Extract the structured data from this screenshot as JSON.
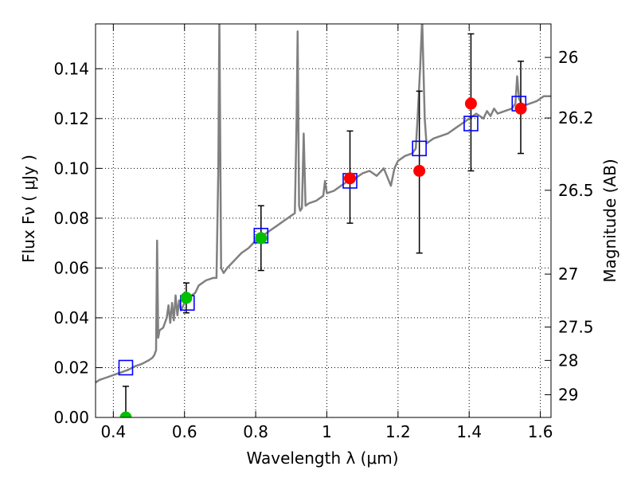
{
  "chart_data": {
    "type": "scatter",
    "xlabel": "Wavelength  λ (μm)",
    "ylabel": "Flux  Fν  ( μJy )",
    "ylabel_right": "Magnitude (AB)",
    "xlim": [
      0.35,
      1.63
    ],
    "ylim": [
      0.0,
      0.158
    ],
    "grid": true,
    "x_ticks": [
      {
        "value": 0.4,
        "label": "0.4"
      },
      {
        "value": 0.6,
        "label": "0.6"
      },
      {
        "value": 0.8,
        "label": "0.8"
      },
      {
        "value": 1.0,
        "label": "1"
      },
      {
        "value": 1.2,
        "label": "1.2"
      },
      {
        "value": 1.4,
        "label": "1.4"
      },
      {
        "value": 1.6,
        "label": "1.6"
      }
    ],
    "y_ticks": [
      {
        "value": 0.0,
        "label": "0.00"
      },
      {
        "value": 0.02,
        "label": "0.02"
      },
      {
        "value": 0.04,
        "label": "0.04"
      },
      {
        "value": 0.06,
        "label": "0.06"
      },
      {
        "value": 0.08,
        "label": "0.08"
      },
      {
        "value": 0.1,
        "label": "0.10"
      },
      {
        "value": 0.12,
        "label": "0.12"
      },
      {
        "value": 0.14,
        "label": "0.14"
      }
    ],
    "right_ticks": [
      {
        "value": 26,
        "label": "26"
      },
      {
        "value": 26.2,
        "label": "26.2"
      },
      {
        "value": 26.5,
        "label": "26.5"
      },
      {
        "value": 27,
        "label": "27"
      },
      {
        "value": 27.5,
        "label": "27.5"
      },
      {
        "value": 28,
        "label": "28"
      },
      {
        "value": 29,
        "label": "29"
      }
    ],
    "series": [
      {
        "kind": "line",
        "color": "#808080",
        "points": [
          [
            0.35,
            0.014
          ],
          [
            0.36,
            0.015
          ],
          [
            0.38,
            0.016
          ],
          [
            0.4,
            0.017
          ],
          [
            0.42,
            0.018
          ],
          [
            0.44,
            0.019
          ],
          [
            0.46,
            0.0205
          ],
          [
            0.48,
            0.0215
          ],
          [
            0.5,
            0.023
          ],
          [
            0.51,
            0.024
          ],
          [
            0.515,
            0.025
          ],
          [
            0.52,
            0.027
          ],
          [
            0.523,
            0.071
          ],
          [
            0.526,
            0.032
          ],
          [
            0.53,
            0.035
          ],
          [
            0.54,
            0.036
          ],
          [
            0.55,
            0.04
          ],
          [
            0.555,
            0.045
          ],
          [
            0.56,
            0.038
          ],
          [
            0.565,
            0.046
          ],
          [
            0.57,
            0.039
          ],
          [
            0.575,
            0.049
          ],
          [
            0.58,
            0.041
          ],
          [
            0.585,
            0.047
          ],
          [
            0.59,
            0.043
          ],
          [
            0.6,
            0.046
          ],
          [
            0.61,
            0.047
          ],
          [
            0.62,
            0.049
          ],
          [
            0.63,
            0.05
          ],
          [
            0.64,
            0.053
          ],
          [
            0.65,
            0.054
          ],
          [
            0.66,
            0.055
          ],
          [
            0.68,
            0.056
          ],
          [
            0.69,
            0.056
          ],
          [
            0.695,
            0.1
          ],
          [
            0.698,
            0.16
          ],
          [
            0.703,
            0.06
          ],
          [
            0.71,
            0.058
          ],
          [
            0.72,
            0.06
          ],
          [
            0.74,
            0.063
          ],
          [
            0.76,
            0.066
          ],
          [
            0.78,
            0.068
          ],
          [
            0.8,
            0.071
          ],
          [
            0.82,
            0.073
          ],
          [
            0.84,
            0.075
          ],
          [
            0.86,
            0.077
          ],
          [
            0.88,
            0.079
          ],
          [
            0.9,
            0.081
          ],
          [
            0.91,
            0.082
          ],
          [
            0.915,
            0.12
          ],
          [
            0.918,
            0.155
          ],
          [
            0.922,
            0.085
          ],
          [
            0.925,
            0.083
          ],
          [
            0.93,
            0.084
          ],
          [
            0.935,
            0.114
          ],
          [
            0.94,
            0.085
          ],
          [
            0.95,
            0.086
          ],
          [
            0.97,
            0.087
          ],
          [
            0.99,
            0.089
          ],
          [
            0.995,
            0.095
          ],
          [
            1.0,
            0.09
          ],
          [
            1.02,
            0.091
          ],
          [
            1.04,
            0.093
          ],
          [
            1.06,
            0.095
          ],
          [
            1.08,
            0.096
          ],
          [
            1.1,
            0.098
          ],
          [
            1.12,
            0.099
          ],
          [
            1.14,
            0.097
          ],
          [
            1.16,
            0.1
          ],
          [
            1.18,
            0.093
          ],
          [
            1.19,
            0.1
          ],
          [
            1.2,
            0.103
          ],
          [
            1.22,
            0.105
          ],
          [
            1.24,
            0.106
          ],
          [
            1.25,
            0.108
          ],
          [
            1.255,
            0.12
          ],
          [
            1.262,
            0.14
          ],
          [
            1.268,
            0.16
          ],
          [
            1.275,
            0.12
          ],
          [
            1.28,
            0.11
          ],
          [
            1.29,
            0.111
          ],
          [
            1.3,
            0.112
          ],
          [
            1.32,
            0.113
          ],
          [
            1.34,
            0.114
          ],
          [
            1.36,
            0.116
          ],
          [
            1.38,
            0.118
          ],
          [
            1.4,
            0.12
          ],
          [
            1.42,
            0.122
          ],
          [
            1.44,
            0.12
          ],
          [
            1.45,
            0.123
          ],
          [
            1.46,
            0.121
          ],
          [
            1.47,
            0.124
          ],
          [
            1.48,
            0.122
          ],
          [
            1.5,
            0.123
          ],
          [
            1.52,
            0.124
          ],
          [
            1.53,
            0.126
          ],
          [
            1.535,
            0.137
          ],
          [
            1.54,
            0.128
          ],
          [
            1.55,
            0.125
          ],
          [
            1.57,
            0.126
          ],
          [
            1.59,
            0.127
          ],
          [
            1.61,
            0.129
          ],
          [
            1.63,
            0.129
          ]
        ]
      },
      {
        "kind": "squares",
        "color": "#0000ff",
        "points": [
          [
            0.435,
            0.02
          ],
          [
            0.608,
            0.046
          ],
          [
            0.815,
            0.073
          ],
          [
            1.065,
            0.095
          ],
          [
            1.26,
            0.108
          ],
          [
            1.405,
            0.118
          ],
          [
            1.54,
            0.126
          ]
        ]
      },
      {
        "kind": "circles",
        "color": "#00c000",
        "points": [
          [
            0.435,
            0.0
          ],
          [
            0.605,
            0.048
          ],
          [
            0.815,
            0.072
          ]
        ]
      },
      {
        "kind": "circles",
        "color": "#ff0000",
        "points": [
          [
            1.065,
            0.096
          ],
          [
            1.26,
            0.099
          ],
          [
            1.405,
            0.126
          ],
          [
            1.545,
            0.124
          ]
        ]
      },
      {
        "kind": "errorbars",
        "color": "#000000",
        "bars": [
          [
            0.435,
            0.0,
            0.0125
          ],
          [
            0.605,
            0.042,
            0.054
          ],
          [
            0.815,
            0.059,
            0.085
          ],
          [
            1.065,
            0.078,
            0.115
          ],
          [
            1.26,
            0.066,
            0.131
          ],
          [
            1.405,
            0.099,
            0.154
          ],
          [
            1.545,
            0.106,
            0.143
          ]
        ]
      }
    ]
  }
}
